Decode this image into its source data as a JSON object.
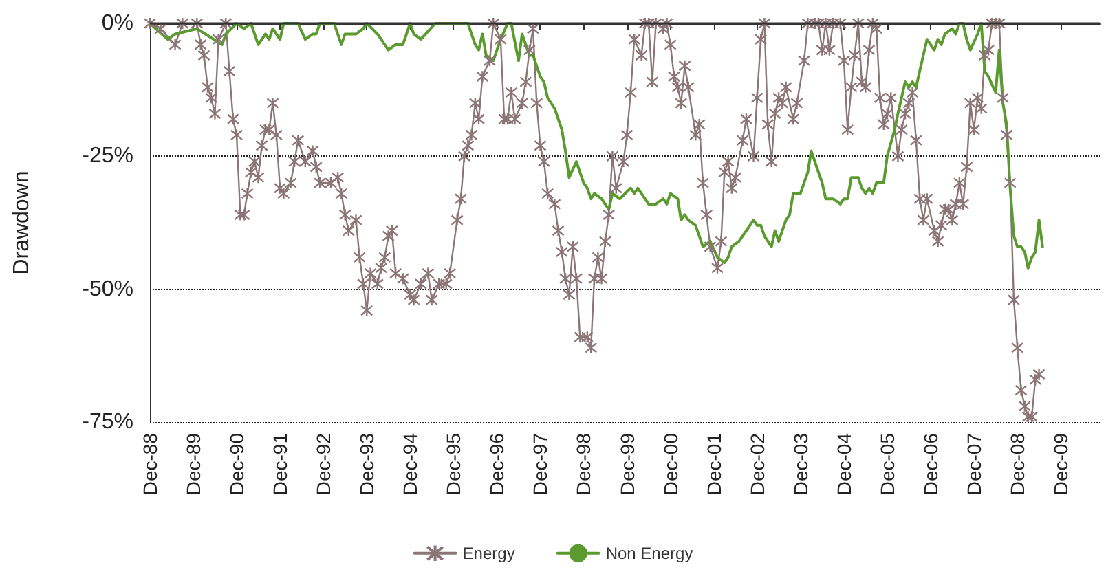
{
  "chart_data": {
    "type": "line",
    "ylabel": "Drawdown",
    "legend": "bottom",
    "grid": "y",
    "line_style": "solid",
    "xlim": [
      "1988-12",
      "2010-11"
    ],
    "xticks": [
      {
        "value": "1988-12",
        "label": "Dec-88"
      },
      {
        "value": "1989-12",
        "label": "Dec-89"
      },
      {
        "value": "1990-12",
        "label": "Dec-90"
      },
      {
        "value": "1991-12",
        "label": "Dec-91"
      },
      {
        "value": "1992-12",
        "label": "Dec-92"
      },
      {
        "value": "1993-12",
        "label": "Dec-93"
      },
      {
        "value": "1994-12",
        "label": "Dec-94"
      },
      {
        "value": "1995-12",
        "label": "Dec-95"
      },
      {
        "value": "1996-12",
        "label": "Dec-96"
      },
      {
        "value": "1997-12",
        "label": "Dec-97"
      },
      {
        "value": "1998-12",
        "label": "Dec-98"
      },
      {
        "value": "1999-12",
        "label": "Dec-99"
      },
      {
        "value": "2000-12",
        "label": "Dec-00"
      },
      {
        "value": "2001-12",
        "label": "Dec-01"
      },
      {
        "value": "2002-12",
        "label": "Dec-02"
      },
      {
        "value": "2003-12",
        "label": "Dec-03"
      },
      {
        "value": "2004-12",
        "label": "Dec-04"
      },
      {
        "value": "2005-12",
        "label": "Dec-05"
      },
      {
        "value": "2006-12",
        "label": "Dec-06"
      },
      {
        "value": "2007-12",
        "label": "Dec-07"
      },
      {
        "value": "2008-12",
        "label": "Dec-08"
      },
      {
        "value": "2009-12",
        "label": "Dec-09"
      }
    ],
    "ylim": [
      -75,
      0
    ],
    "yticks": [
      {
        "value": -75,
        "label": "-75%"
      },
      {
        "value": -50,
        "label": "-50%"
      },
      {
        "value": -25,
        "label": "-25%"
      },
      {
        "value": 0,
        "label": "0%"
      }
    ],
    "ref_lines": [
      {
        "axis": "y",
        "value": 0,
        "color": "#333333",
        "line_style": "solid"
      }
    ],
    "series": [
      {
        "name": "Energy",
        "color": "#8c7577",
        "marker": "cross",
        "x": [
          "1988-12",
          "1989-03",
          "1989-07",
          "1989-09",
          "1990-01",
          "1990-02",
          "1990-03",
          "1990-04",
          "1990-05",
          "1990-06",
          "1990-07",
          "1990-09",
          "1990-10",
          "1990-11",
          "1990-12",
          "1991-01",
          "1991-02",
          "1991-03",
          "1991-04",
          "1991-05",
          "1991-06",
          "1991-07",
          "1991-08",
          "1991-09",
          "1991-10",
          "1991-11",
          "1991-12",
          "1992-01",
          "1992-03",
          "1992-04",
          "1992-05",
          "1992-07",
          "1992-09",
          "1992-10",
          "1992-11",
          "1993-02",
          "1993-04",
          "1993-05",
          "1993-06",
          "1993-07",
          "1993-09",
          "1993-10",
          "1993-11",
          "1993-12",
          "1994-01",
          "1994-03",
          "1994-04",
          "1994-05",
          "1994-06",
          "1994-07",
          "1994-08",
          "1994-10",
          "1994-12",
          "1995-01",
          "1995-03",
          "1995-05",
          "1995-06",
          "1995-08",
          "1995-10",
          "1995-11",
          "1996-01",
          "1996-02",
          "1996-03",
          "1996-04",
          "1996-05",
          "1996-06",
          "1996-07",
          "1996-08",
          "1996-10",
          "1996-11",
          "1997-01",
          "1997-02",
          "1997-03",
          "1997-04",
          "1997-05",
          "1997-07",
          "1997-08",
          "1997-09",
          "1997-10",
          "1997-11",
          "1997-12",
          "1998-01",
          "1998-02",
          "1998-04",
          "1998-05",
          "1998-06",
          "1998-07",
          "1998-08",
          "1998-09",
          "1998-10",
          "1998-11",
          "1999-01",
          "1999-02",
          "1999-03",
          "1999-04",
          "1999-05",
          "1999-06",
          "1999-07",
          "1999-08",
          "1999-09",
          "1999-11",
          "1999-12",
          "2000-01",
          "2000-02",
          "2000-04",
          "2000-05",
          "2000-06",
          "2000-07",
          "2000-08",
          "2000-10",
          "2000-11",
          "2000-12",
          "2001-01",
          "2001-02",
          "2001-03",
          "2001-04",
          "2001-05",
          "2001-07",
          "2001-08",
          "2001-09",
          "2001-10",
          "2001-11",
          "2002-01",
          "2002-02",
          "2002-03",
          "2002-04",
          "2002-05",
          "2002-06",
          "2002-08",
          "2002-09",
          "2002-11",
          "2002-12",
          "2003-01",
          "2003-02",
          "2003-03",
          "2003-04",
          "2003-05",
          "2003-06",
          "2003-07",
          "2003-08",
          "2003-10",
          "2003-11",
          "2004-01",
          "2004-02",
          "2004-04",
          "2004-05",
          "2004-06",
          "2004-07",
          "2004-08",
          "2004-09",
          "2004-11",
          "2004-12",
          "2005-01",
          "2005-02",
          "2005-03",
          "2005-04",
          "2005-05",
          "2005-06",
          "2005-07",
          "2005-08",
          "2005-09",
          "2005-10",
          "2005-11",
          "2005-12",
          "2006-01",
          "2006-03",
          "2006-04",
          "2006-05",
          "2006-06",
          "2006-07",
          "2006-08",
          "2006-09",
          "2006-10",
          "2006-11",
          "2007-01",
          "2007-02",
          "2007-03",
          "2007-04",
          "2007-05",
          "2007-06",
          "2007-07",
          "2007-08",
          "2007-09",
          "2007-10",
          "2007-11",
          "2007-12",
          "2008-01",
          "2008-02",
          "2008-03",
          "2008-04",
          "2008-05",
          "2008-06",
          "2008-07",
          "2008-08",
          "2008-09",
          "2008-10",
          "2008-11",
          "2008-12",
          "2009-01",
          "2009-02",
          "2009-03",
          "2009-04",
          "2009-05",
          "2009-06"
        ],
        "values": [
          0,
          -1,
          -4,
          0,
          0,
          -4,
          -6,
          -12,
          -14,
          -17,
          -3,
          0,
          -9,
          -18,
          -21,
          -36,
          -36,
          -32,
          -28,
          -26,
          -29,
          -23,
          -20,
          -20,
          -15,
          -21,
          -31,
          -32,
          -30,
          -26,
          -22,
          -26,
          -24,
          -27,
          -30,
          -30,
          -29,
          -32,
          -36,
          -39,
          -37,
          -44,
          -49,
          -54,
          -47,
          -49,
          -46,
          -44,
          -40,
          -39,
          -47,
          -48,
          -51,
          -52,
          -49,
          -47,
          -52,
          -49,
          -49,
          -47,
          -37,
          -33,
          -25,
          -23,
          -21,
          -15,
          -18,
          -10,
          -7,
          0,
          -3,
          -18,
          -18,
          -13,
          -18,
          -15,
          -11,
          -5,
          -1,
          -15,
          -23,
          -26,
          -32,
          -34,
          -39,
          -43,
          -48,
          -51,
          -42,
          -48,
          -59,
          -59,
          -61,
          -48,
          -44,
          -48,
          -41,
          -36,
          -25,
          -31,
          -26,
          -21,
          -13,
          -3,
          -6,
          0,
          0,
          -11,
          0,
          -1,
          0,
          -4,
          -10,
          -12,
          -15,
          -8,
          -12,
          -21,
          -19,
          -30,
          -36,
          -42,
          -46,
          -41,
          -28,
          -26,
          -31,
          -29,
          -22,
          -18,
          -25,
          -14,
          -3,
          0,
          -19,
          -26,
          -17,
          -14,
          -15,
          -12,
          -18,
          -15,
          -7,
          0,
          0,
          0,
          -5,
          0,
          -5,
          0,
          0,
          -7,
          -20,
          -12,
          -6,
          0,
          -11,
          -12,
          -5,
          0,
          -1,
          -14,
          -19,
          -17,
          -14,
          -25,
          -20,
          -17,
          -15,
          -13,
          -22,
          -33,
          -37,
          -33,
          -39,
          -41,
          -38,
          -35,
          -35,
          -37,
          -34,
          -30,
          -34,
          -27,
          -15,
          -20,
          -14,
          -16,
          -6,
          -5,
          0,
          0,
          0,
          -14,
          -21,
          -30,
          -52,
          -61,
          -69,
          -72,
          -74,
          -74,
          -67,
          -66
        ]
      },
      {
        "name": "Non Energy",
        "color": "#5a9a2e",
        "marker": "none",
        "x": [
          "1988-12",
          "1989-05",
          "1989-07",
          "1990-01",
          "1990-08",
          "1990-09",
          "1990-12",
          "1991-02",
          "1991-04",
          "1991-06",
          "1991-08",
          "1991-09",
          "1991-10",
          "1991-12",
          "1992-01",
          "1992-05",
          "1992-07",
          "1992-09",
          "1992-10",
          "1992-11",
          "1993-03",
          "1993-05",
          "1993-06",
          "1993-08",
          "1993-09",
          "1993-11",
          "1993-12",
          "1994-03",
          "1994-04",
          "1994-06",
          "1994-08",
          "1994-10",
          "1994-12",
          "1995-01",
          "1995-03",
          "1995-07",
          "1995-12",
          "1996-04",
          "1996-06",
          "1996-07",
          "1996-08",
          "1996-09",
          "1996-11",
          "1997-01",
          "1997-03",
          "1997-04",
          "1997-06",
          "1997-07",
          "1997-08",
          "1997-09",
          "1997-10",
          "1997-12",
          "1998-01",
          "1998-02",
          "1998-04",
          "1998-06",
          "1998-07",
          "1998-08",
          "1998-10",
          "1998-12",
          "1999-01",
          "1999-02",
          "1999-03",
          "1999-05",
          "1999-07",
          "1999-08",
          "1999-10",
          "2000-01",
          "2000-02",
          "2000-03",
          "2000-04",
          "2000-06",
          "2000-08",
          "2000-10",
          "2000-11",
          "2000-12",
          "2001-02",
          "2001-03",
          "2001-04",
          "2001-05",
          "2001-07",
          "2001-09",
          "2001-11",
          "2002-01",
          "2002-03",
          "2002-04",
          "2002-05",
          "2002-07",
          "2002-09",
          "2002-11",
          "2002-12",
          "2003-01",
          "2003-02",
          "2003-04",
          "2003-05",
          "2003-06",
          "2003-07",
          "2003-08",
          "2003-09",
          "2003-10",
          "2003-12",
          "2004-02",
          "2004-03",
          "2004-05",
          "2004-06",
          "2004-07",
          "2004-09",
          "2004-11",
          "2004-12",
          "2005-01",
          "2005-02",
          "2005-04",
          "2005-05",
          "2005-06",
          "2005-07",
          "2005-08",
          "2005-09",
          "2005-11",
          "2005-12",
          "2006-02",
          "2006-03",
          "2006-05",
          "2006-06",
          "2006-07",
          "2006-08",
          "2006-10",
          "2006-11",
          "2007-01",
          "2007-02",
          "2007-03",
          "2007-04",
          "2007-06",
          "2007-07",
          "2007-08",
          "2007-09",
          "2007-10",
          "2007-11",
          "2008-01",
          "2008-02",
          "2008-03",
          "2008-04",
          "2008-06",
          "2008-07",
          "2008-08",
          "2008-09",
          "2008-10",
          "2008-11",
          "2008-12",
          "2009-01",
          "2009-02",
          "2009-03",
          "2009-04",
          "2009-05",
          "2009-06",
          "2009-07"
        ],
        "values": [
          0,
          -3,
          -2,
          -1,
          -4,
          -2,
          0,
          -1,
          0,
          -4,
          -2,
          -3,
          -1,
          -3,
          0,
          0,
          -3,
          -2,
          -2,
          0,
          0,
          -4,
          -2,
          -2,
          -2,
          -1,
          0,
          -2,
          -3,
          -5,
          -4,
          -4,
          0,
          -2,
          -3,
          0,
          0,
          0,
          -4,
          -5,
          -2,
          -6,
          -7,
          -3,
          0,
          0,
          -7,
          -2,
          -4,
          -6,
          -6,
          -10,
          -11,
          -14,
          -16,
          -20,
          -24,
          -29,
          -26,
          -30,
          -31,
          -33,
          -32,
          -33,
          -35,
          -32,
          -33,
          -31,
          -32,
          -31,
          -32,
          -34,
          -34,
          -33,
          -34,
          -32,
          -33,
          -37,
          -36,
          -37,
          -38,
          -42,
          -41,
          -44,
          -45,
          -44,
          -42,
          -41,
          -39,
          -37,
          -38,
          -38,
          -40,
          -42,
          -39,
          -41,
          -39,
          -37,
          -36,
          -32,
          -32,
          -28,
          -24,
          -28,
          -30,
          -33,
          -33,
          -34,
          -33,
          -33,
          -29,
          -29,
          -31,
          -32,
          -31,
          -32,
          -30,
          -30,
          -25,
          -20,
          -17,
          -11,
          -12,
          -11,
          -12,
          -6,
          -3,
          -5,
          -3,
          -4,
          -2,
          -1,
          -2,
          0,
          0,
          -3,
          -5,
          -2,
          0,
          -9,
          -10,
          -13,
          -5,
          -15,
          -19,
          -31,
          -40,
          -42,
          -42,
          -43,
          -46,
          -44,
          -43,
          -37,
          -42
        ]
      }
    ]
  }
}
